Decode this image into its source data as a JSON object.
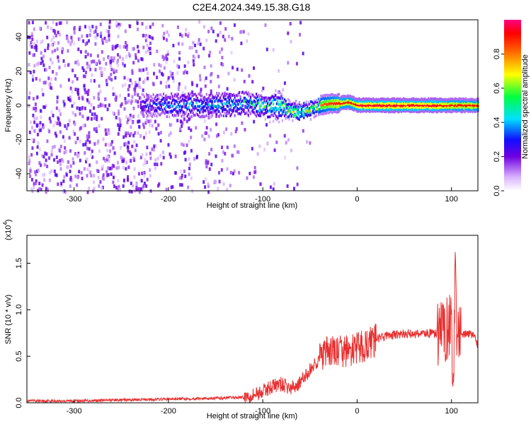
{
  "title": "C2E4.2024.349.15.38.G18",
  "chart_data": [
    {
      "type": "heatmap",
      "xlabel": "Height of straight line (km)",
      "ylabel": "Frequency (Hz)",
      "xlim": [
        -350,
        128
      ],
      "ylim": [
        -50,
        50
      ],
      "x_ticks": [
        -300,
        -200,
        -100,
        0,
        100
      ],
      "y_ticks": [
        -40,
        -20,
        0,
        20,
        40
      ],
      "colorbar": {
        "label": "Normalized spectral amplitude",
        "range": [
          0,
          1
        ],
        "ticks": [
          "0.0",
          "0.2",
          "0.4",
          "0.6",
          "0.8"
        ]
      },
      "ridge": {
        "x": [
          -230,
          -200,
          -160,
          -120,
          -100,
          -80,
          -70,
          -60,
          -50,
          -40,
          -30,
          -20,
          -10,
          -5,
          0,
          20,
          50,
          80,
          100,
          128
        ],
        "y": [
          0,
          0,
          0,
          1,
          0,
          -1,
          -3,
          -4,
          -2,
          0,
          1,
          1,
          2,
          1,
          0,
          0,
          0,
          0,
          0,
          0
        ],
        "amplitude": [
          0.3,
          0.4,
          0.45,
          0.5,
          0.55,
          0.7,
          0.75,
          0.7,
          0.7,
          0.8,
          0.85,
          0.9,
          0.9,
          0.9,
          0.95,
          0.95,
          0.95,
          0.95,
          0.9,
          0.9
        ]
      },
      "noise_region": [
        -350,
        -110
      ]
    },
    {
      "type": "line",
      "xlabel": "Height of straight line (km)",
      "ylabel": "SNR (10 * v/v)",
      "y_scale_label": "(x10",
      "y_scale_exp": "4",
      "y_scale_close": ")",
      "xlim": [
        -350,
        128
      ],
      "ylim": [
        0,
        1.8
      ],
      "x_ticks": [
        -300,
        -200,
        -100,
        0,
        100
      ],
      "y_ticks": [
        "0.0",
        "0.5",
        "1.0",
        "1.5"
      ],
      "series": [
        {
          "color": "#e83030",
          "x": [
            -350,
            -300,
            -250,
            -200,
            -150,
            -120,
            -100,
            -90,
            -80,
            -70,
            -60,
            -50,
            -40,
            -30,
            -20,
            -10,
            0,
            10,
            20,
            30,
            40,
            50,
            60,
            70,
            80,
            90,
            95,
            100,
            102,
            104,
            106,
            110,
            115,
            120,
            125,
            128
          ],
          "y": [
            0.02,
            0.02,
            0.03,
            0.04,
            0.05,
            0.06,
            0.12,
            0.18,
            0.2,
            0.15,
            0.22,
            0.35,
            0.48,
            0.55,
            0.55,
            0.55,
            0.58,
            0.62,
            0.68,
            0.72,
            0.73,
            0.74,
            0.74,
            0.75,
            0.74,
            0.75,
            0.8,
            0.9,
            0.05,
            1.7,
            0.6,
            0.72,
            0.74,
            0.74,
            0.72,
            0.6
          ]
        }
      ]
    }
  ]
}
